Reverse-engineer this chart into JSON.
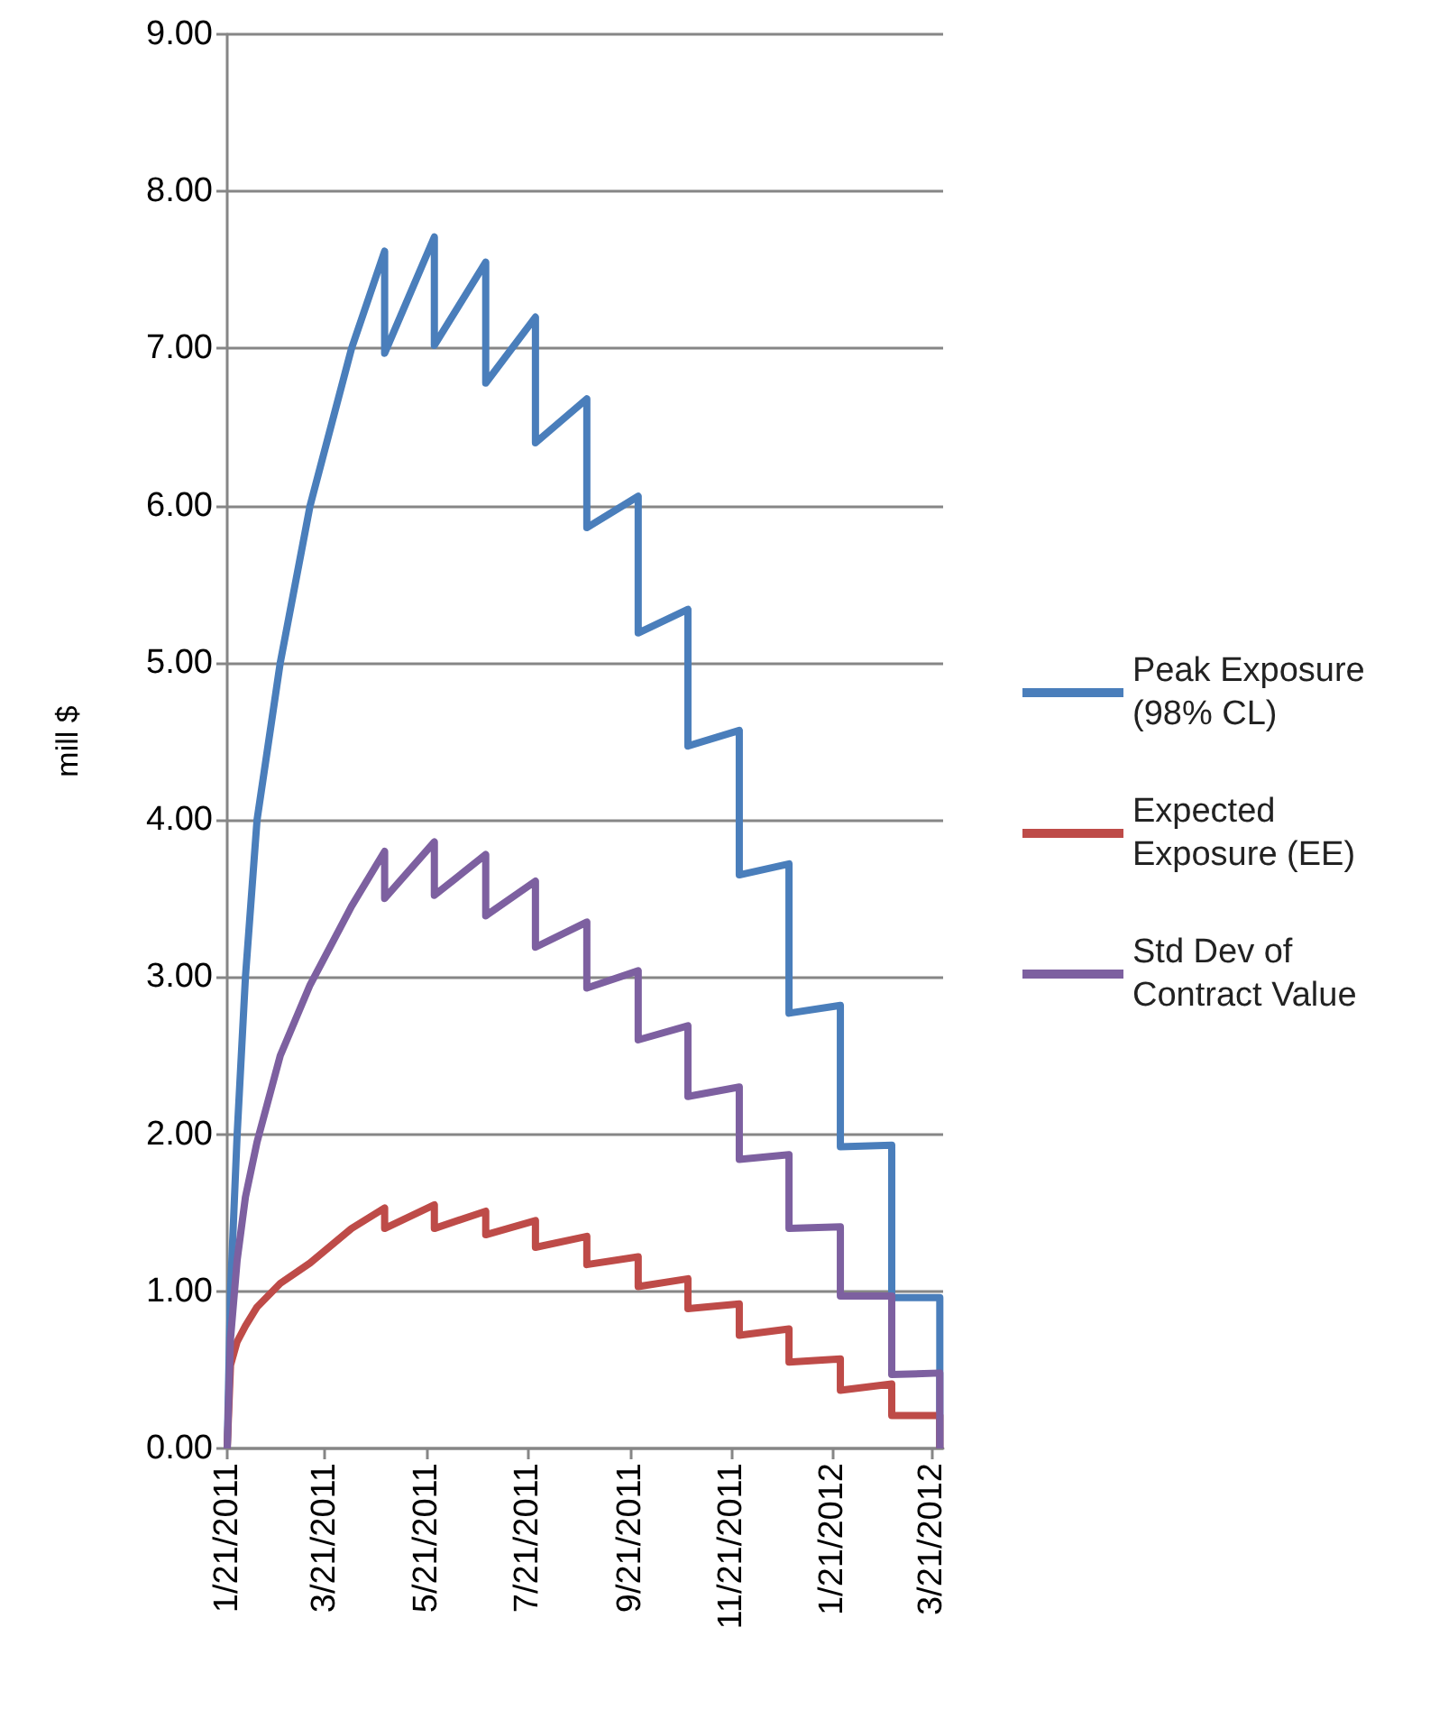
{
  "chart_data": {
    "type": "line",
    "ylabel": "mill $",
    "x": [
      "2011-01-21",
      "2011-01-23",
      "2011-01-27",
      "2011-02-01",
      "2011-02-08",
      "2011-02-22",
      "2011-03-12",
      "2011-04-06",
      "2011-04-26",
      "2011-04-26",
      "2011-05-26",
      "2011-05-26",
      "2011-06-26",
      "2011-06-26",
      "2011-07-26",
      "2011-07-26",
      "2011-08-26",
      "2011-08-26",
      "2011-09-26",
      "2011-09-26",
      "2011-10-26",
      "2011-10-26",
      "2011-11-26",
      "2011-11-26",
      "2011-12-26",
      "2011-12-26",
      "2012-01-26",
      "2012-01-26",
      "2012-02-26",
      "2012-02-26",
      "2012-03-26",
      "2012-03-26"
    ],
    "series": [
      {
        "name": "Peak Exposure (98% CL)",
        "color": "#4a7ebb",
        "values": [
          0,
          1.0,
          2.0,
          3.0,
          4.0,
          5.0,
          6.0,
          7.0,
          7.62,
          6.97,
          7.71,
          7.02,
          7.55,
          6.78,
          7.2,
          6.4,
          6.68,
          5.86,
          6.06,
          5.19,
          5.34,
          4.47,
          4.57,
          3.65,
          3.72,
          2.77,
          2.82,
          1.92,
          1.93,
          0.96,
          0.96,
          0
        ]
      },
      {
        "name": "Expected Exposure (EE)",
        "color": "#be4b48",
        "values": [
          0,
          0.53,
          0.68,
          0.78,
          0.9,
          1.05,
          1.18,
          1.4,
          1.53,
          1.4,
          1.55,
          1.4,
          1.51,
          1.36,
          1.45,
          1.28,
          1.35,
          1.17,
          1.22,
          1.03,
          1.08,
          0.89,
          0.92,
          0.72,
          0.76,
          0.55,
          0.57,
          0.37,
          0.41,
          0.21,
          0.21,
          0
        ]
      },
      {
        "name": "Std Dev of Contract Value",
        "color": "#7d60a0",
        "values": [
          0,
          0.7,
          1.2,
          1.6,
          1.95,
          2.5,
          2.95,
          3.45,
          3.8,
          3.5,
          3.86,
          3.52,
          3.78,
          3.39,
          3.61,
          3.19,
          3.35,
          2.93,
          3.04,
          2.6,
          2.69,
          2.24,
          2.3,
          1.84,
          1.87,
          1.4,
          1.41,
          0.97,
          0.97,
          0.47,
          0.48,
          0
        ]
      }
    ],
    "xlim": [
      "2011-01-21",
      "2012-03-28"
    ],
    "xticks": [
      {
        "value": "2011-01-21",
        "label": "1/21/2011"
      },
      {
        "value": "2011-03-21",
        "label": "3/21/2011"
      },
      {
        "value": "2011-05-21",
        "label": "5/21/2011"
      },
      {
        "value": "2011-07-21",
        "label": "7/21/2011"
      },
      {
        "value": "2011-09-21",
        "label": "9/21/2011"
      },
      {
        "value": "2011-11-21",
        "label": "11/21/2011"
      },
      {
        "value": "2012-01-21",
        "label": "1/21/2012"
      },
      {
        "value": "2012-03-21",
        "label": "3/21/2012"
      }
    ],
    "ylim": [
      0,
      9
    ],
    "yticks": [
      {
        "value": 0,
        "label": "0.00"
      },
      {
        "value": 1,
        "label": "1.00"
      },
      {
        "value": 2,
        "label": "2.00"
      },
      {
        "value": 3,
        "label": "3.00"
      },
      {
        "value": 4,
        "label": "4.00"
      },
      {
        "value": 5,
        "label": "5.00"
      },
      {
        "value": 6,
        "label": "6.00"
      },
      {
        "value": 7,
        "label": "7.00"
      },
      {
        "value": 8,
        "label": "8.00"
      },
      {
        "value": 9,
        "label": "9.00"
      }
    ],
    "grid": "y",
    "legend": "right"
  }
}
